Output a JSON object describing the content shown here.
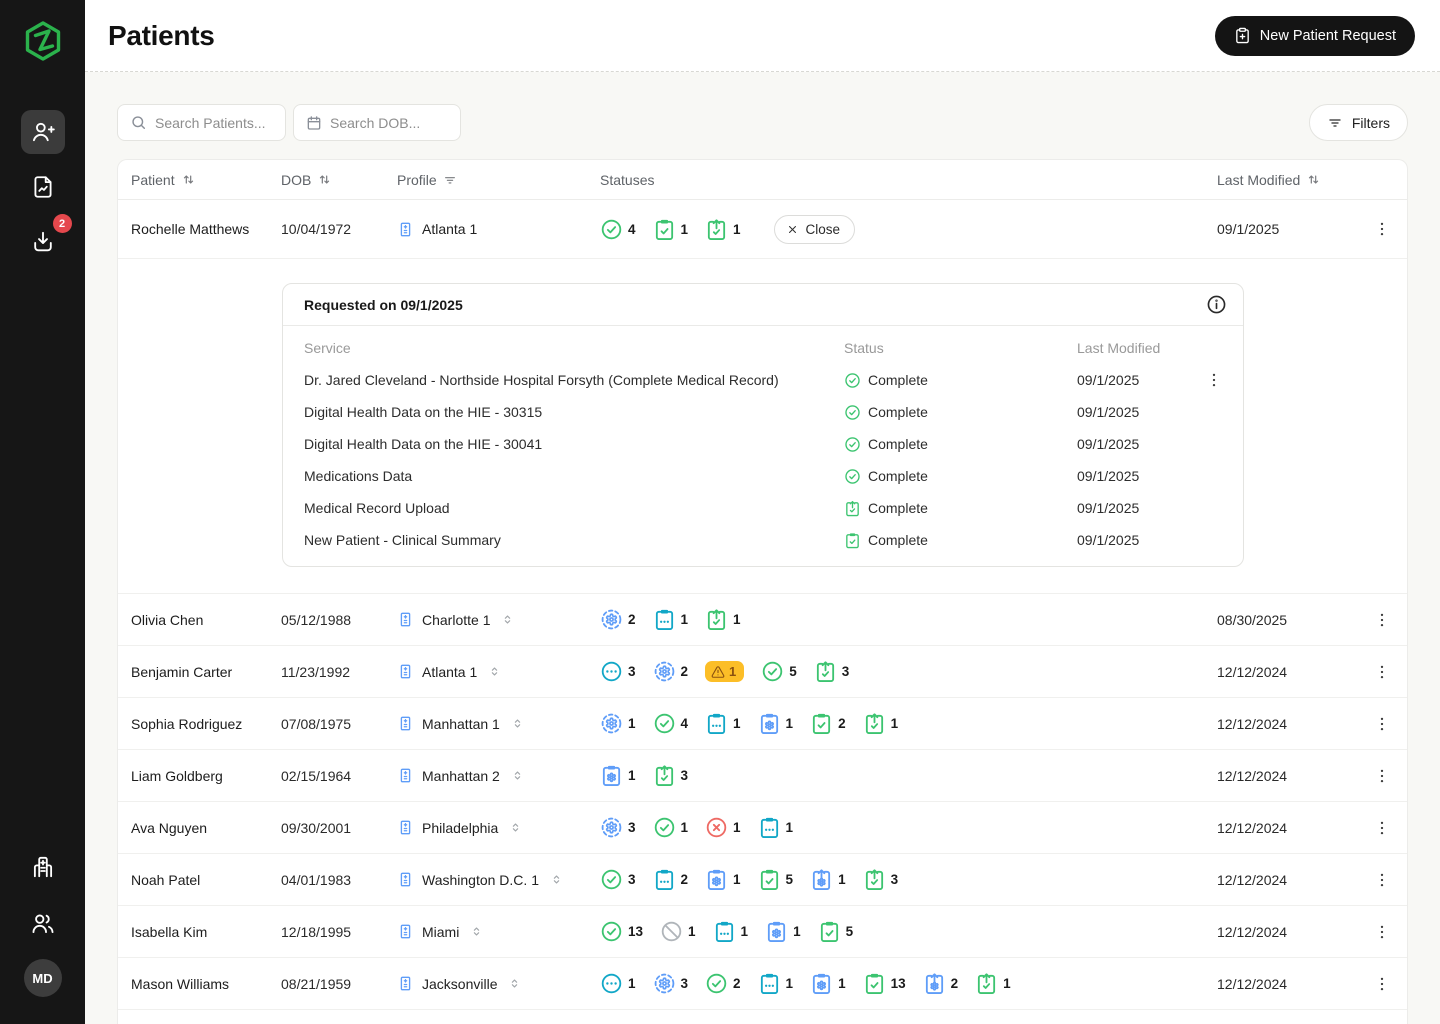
{
  "app": {
    "title": "Patients",
    "new_patient_button": "New Patient Request"
  },
  "sidebar": {
    "download_badge": "2",
    "avatar_initials": "MD",
    "items_top": [
      "add-patient",
      "reports",
      "downloads"
    ],
    "items_bottom": [
      "facilities",
      "team"
    ]
  },
  "toolbar": {
    "search_patients_placeholder": "Search Patients...",
    "search_dob_placeholder": "Search DOB...",
    "filters_label": "Filters"
  },
  "table": {
    "columns": {
      "patient": "Patient",
      "dob": "DOB",
      "profile": "Profile",
      "statuses": "Statuses",
      "last_modified": "Last Modified"
    },
    "rows": [
      {
        "patient": "Rochelle Matthews",
        "dob": "10/04/1972",
        "profile": "Atlanta 1",
        "profile_selector": false,
        "expanded": true,
        "close_label": "Close",
        "last_modified": "09/1/2025",
        "statuses": [
          {
            "type": "check-circle",
            "color": "green",
            "count": "4"
          },
          {
            "type": "clipboard-check",
            "color": "green",
            "count": "1"
          },
          {
            "type": "clipboard-up",
            "color": "green",
            "count": "1"
          }
        ]
      },
      {
        "patient": "Olivia Chen",
        "dob": "05/12/1988",
        "profile": "Charlotte 1",
        "profile_selector": true,
        "last_modified": "08/30/2025",
        "statuses": [
          {
            "type": "gear-dashed",
            "color": "blue",
            "count": "2"
          },
          {
            "type": "clipboard-dots",
            "color": "teal",
            "count": "1"
          },
          {
            "type": "clipboard-up",
            "color": "green",
            "count": "1"
          }
        ]
      },
      {
        "patient": "Benjamin Carter",
        "dob": "11/23/1992",
        "profile": "Atlanta 1",
        "profile_selector": true,
        "last_modified": "12/12/2024",
        "statuses": [
          {
            "type": "circle-dots",
            "color": "teal",
            "count": "3"
          },
          {
            "type": "gear-dashed",
            "color": "blue",
            "count": "2"
          },
          {
            "type": "warning",
            "color": "amber",
            "count": "1"
          },
          {
            "type": "check-circle",
            "color": "green",
            "count": "5"
          },
          {
            "type": "clipboard-up",
            "color": "green",
            "count": "3"
          }
        ]
      },
      {
        "patient": "Sophia Rodriguez",
        "dob": "07/08/1975",
        "profile": "Manhattan 1",
        "profile_selector": true,
        "last_modified": "12/12/2024",
        "statuses": [
          {
            "type": "gear-dashed",
            "color": "blue",
            "count": "1"
          },
          {
            "type": "check-circle",
            "color": "green",
            "count": "4"
          },
          {
            "type": "clipboard-dots",
            "color": "teal",
            "count": "1"
          },
          {
            "type": "clipboard-gear",
            "color": "blue",
            "count": "1"
          },
          {
            "type": "clipboard-check",
            "color": "green",
            "count": "2"
          },
          {
            "type": "clipboard-up",
            "color": "green",
            "count": "1"
          }
        ]
      },
      {
        "patient": "Liam Goldberg",
        "dob": "02/15/1964",
        "profile": "Manhattan 2",
        "profile_selector": true,
        "last_modified": "12/12/2024",
        "statuses": [
          {
            "type": "clipboard-gear",
            "color": "blue",
            "count": "1"
          },
          {
            "type": "clipboard-up",
            "color": "green",
            "count": "3"
          }
        ]
      },
      {
        "patient": "Ava Nguyen",
        "dob": "09/30/2001",
        "profile": "Philadelphia",
        "profile_selector": true,
        "last_modified": "12/12/2024",
        "statuses": [
          {
            "type": "gear-dashed",
            "color": "blue",
            "count": "3"
          },
          {
            "type": "check-circle",
            "color": "green",
            "count": "1"
          },
          {
            "type": "x-circle",
            "color": "red",
            "count": "1"
          },
          {
            "type": "clipboard-dots",
            "color": "teal",
            "count": "1"
          }
        ]
      },
      {
        "patient": "Noah Patel",
        "dob": "04/01/1983",
        "profile": "Washington D.C. 1",
        "profile_selector": true,
        "last_modified": "12/12/2024",
        "statuses": [
          {
            "type": "check-circle",
            "color": "green",
            "count": "3"
          },
          {
            "type": "clipboard-dots",
            "color": "teal",
            "count": "2"
          },
          {
            "type": "clipboard-gear",
            "color": "blue",
            "count": "1"
          },
          {
            "type": "clipboard-check",
            "color": "green",
            "count": "5"
          },
          {
            "type": "clipboard-up-gear",
            "color": "blue",
            "count": "1"
          },
          {
            "type": "clipboard-up",
            "color": "green",
            "count": "3"
          }
        ]
      },
      {
        "patient": "Isabella Kim",
        "dob": "12/18/1995",
        "profile": "Miami",
        "profile_selector": true,
        "last_modified": "12/12/2024",
        "statuses": [
          {
            "type": "check-circle",
            "color": "green",
            "count": "13"
          },
          {
            "type": "slash-circle",
            "color": "gray",
            "count": "1"
          },
          {
            "type": "clipboard-dots",
            "color": "teal",
            "count": "1"
          },
          {
            "type": "clipboard-gear",
            "color": "blue",
            "count": "1"
          },
          {
            "type": "clipboard-check",
            "color": "green",
            "count": "5"
          }
        ]
      },
      {
        "patient": "Mason Williams",
        "dob": "08/21/1959",
        "profile": "Jacksonville",
        "profile_selector": true,
        "last_modified": "12/12/2024",
        "statuses": [
          {
            "type": "circle-dots",
            "color": "teal",
            "count": "1"
          },
          {
            "type": "gear-dashed",
            "color": "blue",
            "count": "3"
          },
          {
            "type": "check-circle",
            "color": "green",
            "count": "2"
          },
          {
            "type": "clipboard-dots",
            "color": "teal",
            "count": "1"
          },
          {
            "type": "clipboard-gear",
            "color": "blue",
            "count": "1"
          },
          {
            "type": "clipboard-check",
            "color": "green",
            "count": "13"
          },
          {
            "type": "clipboard-up-gear",
            "color": "blue",
            "count": "2"
          },
          {
            "type": "clipboard-up",
            "color": "green",
            "count": "1"
          }
        ]
      },
      {
        "patient": "",
        "dob": "",
        "profile": "",
        "profile_selector": false,
        "partial": true,
        "last_modified": "",
        "statuses": [
          {
            "type": "gear-dashed",
            "color": "blue",
            "count": ""
          },
          {
            "type": "check-circle",
            "color": "green",
            "count": ""
          },
          {
            "type": "clipboard-dots",
            "color": "teal",
            "count": ""
          },
          {
            "type": "clipboard-check",
            "color": "green",
            "count": ""
          }
        ]
      }
    ]
  },
  "expanded_request": {
    "title": "Requested on 09/1/2025",
    "columns": {
      "service": "Service",
      "status": "Status",
      "last_modified": "Last Modified"
    },
    "services": [
      {
        "name": "Dr. Jared Cleveland - Northside Hospital Forsyth (Complete Medical Record)",
        "status_icon": "check-circle",
        "status": "Complete",
        "last_modified": "09/1/2025",
        "menu": true
      },
      {
        "name": "Digital Health Data on the HIE - 30315",
        "status_icon": "check-circle",
        "status": "Complete",
        "last_modified": "09/1/2025",
        "menu": false
      },
      {
        "name": "Digital Health Data on the HIE - 30041",
        "status_icon": "check-circle",
        "status": "Complete",
        "last_modified": "09/1/2025",
        "menu": false
      },
      {
        "name": "Medications Data",
        "status_icon": "check-circle",
        "status": "Complete",
        "last_modified": "09/1/2025",
        "menu": false
      },
      {
        "name": "Medical Record Upload",
        "status_icon": "clipboard-up",
        "status": "Complete",
        "last_modified": "09/1/2025",
        "menu": false
      },
      {
        "name": "New Patient - Clinical Summary",
        "status_icon": "clipboard-check",
        "status": "Complete",
        "last_modified": "09/1/2025",
        "menu": false
      }
    ]
  },
  "colors": {
    "green": "#3cc470",
    "teal": "#12a7c7",
    "blue": "#5f9df8",
    "red": "#ee6a64",
    "gray": "#b0b5ba",
    "amber_bg": "#fcbe27",
    "amber_fg": "#8a5110",
    "logo_green": "#2bb24c",
    "badge_red": "#e5484d",
    "icon_muted": "#76787c"
  }
}
